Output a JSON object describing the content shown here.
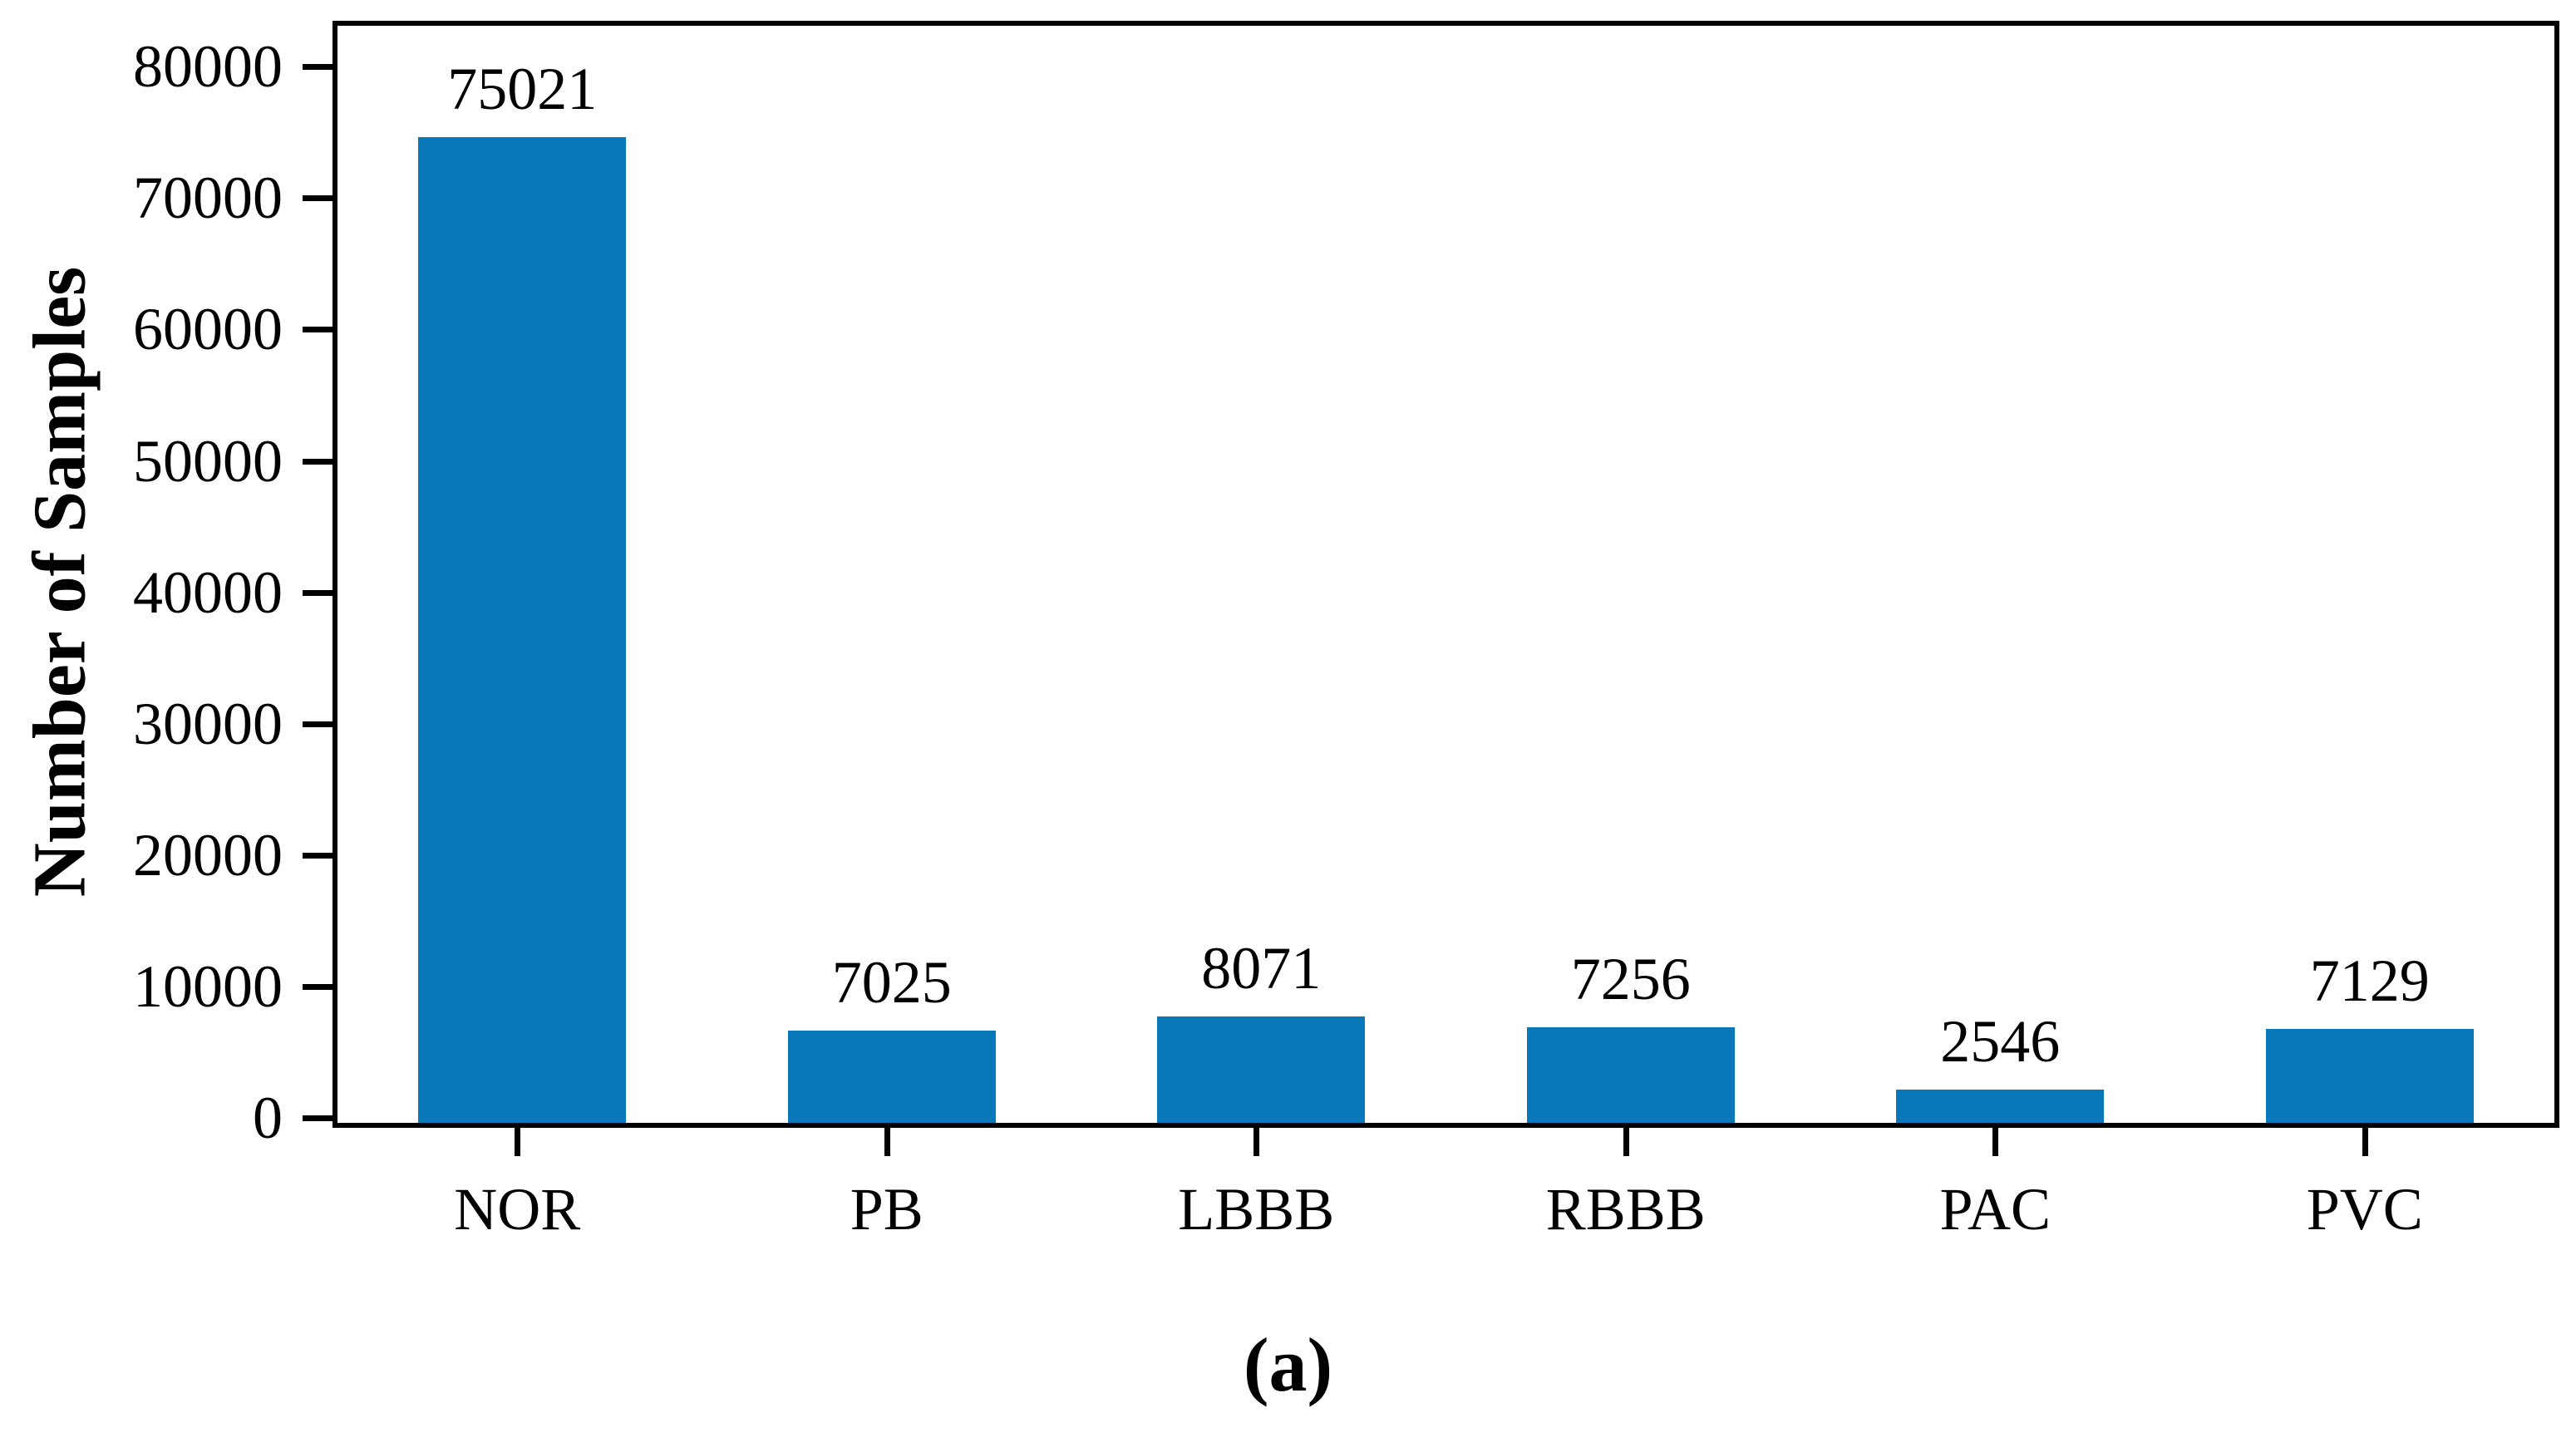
{
  "chart_data": {
    "type": "bar",
    "categories": [
      "NOR",
      "PB",
      "LBBB",
      "RBBB",
      "PAC",
      "PVC"
    ],
    "values": [
      75021,
      7025,
      8071,
      7256,
      2546,
      7129
    ],
    "bar_labels": [
      "75021",
      "7025",
      "8071",
      "7256",
      "2546",
      "7129"
    ],
    "title": "",
    "xlabel": "",
    "ylabel": "Number of Samples",
    "ylim": [
      0,
      83500
    ],
    "yticks": [
      0,
      10000,
      20000,
      30000,
      40000,
      50000,
      60000,
      70000,
      80000
    ],
    "ytick_labels": [
      "0",
      "10000",
      "20000",
      "30000",
      "40000",
      "50000",
      "60000",
      "70000",
      "80000"
    ],
    "grid": false,
    "legend": "none",
    "bar_color": "#0878b8",
    "axis_color": "#000000",
    "background_color": "#ffffff",
    "caption": "(a)"
  }
}
